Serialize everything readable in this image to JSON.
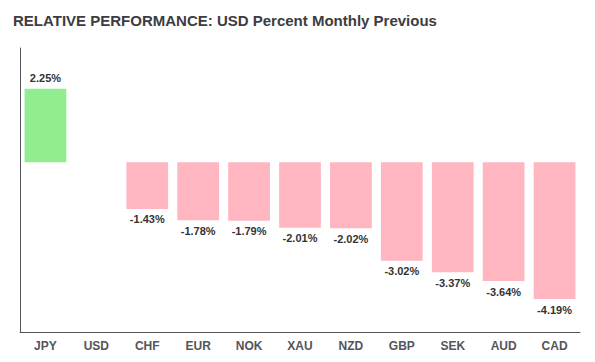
{
  "chart_data": {
    "type": "bar",
    "title": "RELATIVE PERFORMANCE: USD Percent Monthly Previous",
    "categories": [
      "JPY",
      "USD",
      "CHF",
      "EUR",
      "NOK",
      "XAU",
      "NZD",
      "GBP",
      "SEK",
      "AUD",
      "CAD"
    ],
    "values": [
      2.25,
      0.0,
      -1.43,
      -1.78,
      -1.79,
      -2.01,
      -2.02,
      -3.02,
      -3.37,
      -3.64,
      -4.19
    ],
    "value_labels": [
      "2.25%",
      null,
      "-1.43%",
      "-1.78%",
      "-1.79%",
      "-2.01%",
      "-2.02%",
      "-3.02%",
      "-3.37%",
      "-3.64%",
      "-4.19%"
    ],
    "colors": [
      "#90EE90",
      "#808080",
      "#FFB6C1",
      "#FFB6C1",
      "#FFB6C1",
      "#FFB6C1",
      "#FFB6C1",
      "#FFB6C1",
      "#FFB6C1",
      "#FFB6C1",
      "#FFB6C1"
    ],
    "ylim": [
      -5.2,
      3.5
    ],
    "grid": false,
    "data_labels": true,
    "tick_labels": "x"
  }
}
